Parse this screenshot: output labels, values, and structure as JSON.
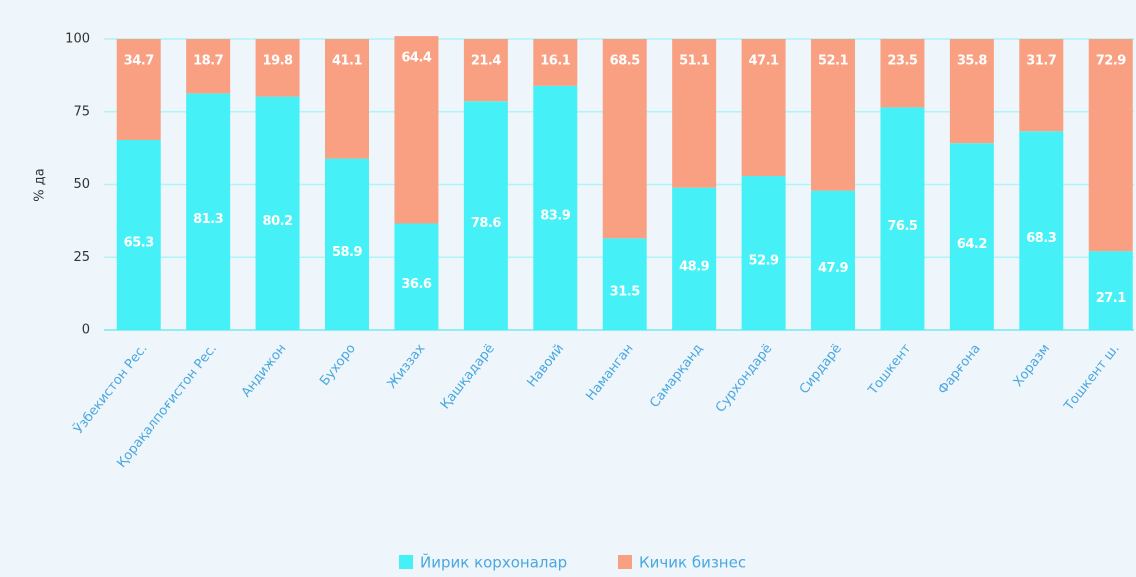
{
  "chart_data": {
    "type": "stacked_bar",
    "ylabel": "% да",
    "categories": [
      "Ўзбекистон Рес.",
      "Қорақалпоғистон Рес.",
      "Андижон",
      "Бухоро",
      "Жиззах",
      "Қашқадарё",
      "Навоий",
      "Наманган",
      "Самарқанд",
      "Сурхондарё",
      "Сирдарё",
      "Тошкент",
      "Фарғона",
      "Хоразм",
      "Тошкент ш."
    ],
    "series": [
      {
        "name": "Йирик корхоналар",
        "color": "#45f1f6",
        "values": [
          65.3,
          81.3,
          80.2,
          58.9,
          36.6,
          78.6,
          83.9,
          31.5,
          48.9,
          52.9,
          47.9,
          76.5,
          64.2,
          68.3,
          27.1
        ]
      },
      {
        "name": "Кичик бизнес",
        "color": "#f9a083",
        "values": [
          34.7,
          18.7,
          19.8,
          41.1,
          64.4,
          21.4,
          16.1,
          68.5,
          51.1,
          47.1,
          52.1,
          23.5,
          35.8,
          31.7,
          72.9
        ]
      }
    ],
    "ylim": [
      0,
      100
    ],
    "yticks": [
      0,
      25,
      50,
      75,
      100
    ],
    "grid": true,
    "legend": "bottom"
  }
}
